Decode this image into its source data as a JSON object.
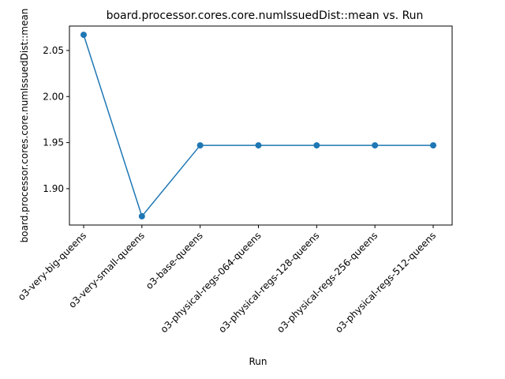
{
  "chart_data": {
    "type": "line",
    "title": "board.processor.cores.core.numIssuedDist::mean vs. Run",
    "xlabel": "Run",
    "ylabel": "board.processor.cores.core.numIssuedDist::mean",
    "categories": [
      "o3-very-big-queens",
      "o3-very-small-queens",
      "o3-base-queens",
      "o3-physical-regs-064-queens",
      "o3-physical-regs-128-queens",
      "o3-physical-regs-256-queens",
      "o3-physical-regs-512-queens"
    ],
    "values": [
      2.067,
      1.87,
      1.947,
      1.947,
      1.947,
      1.947,
      1.947
    ],
    "ylim": [
      1.8605,
      2.0765
    ],
    "yticks": [
      1.9,
      1.95,
      2.0,
      2.05
    ],
    "ytick_labels": [
      "1.90",
      "1.95",
      "2.00",
      "2.05"
    ],
    "grid": false,
    "line_color": "#1f77b4",
    "marker": "circle"
  }
}
